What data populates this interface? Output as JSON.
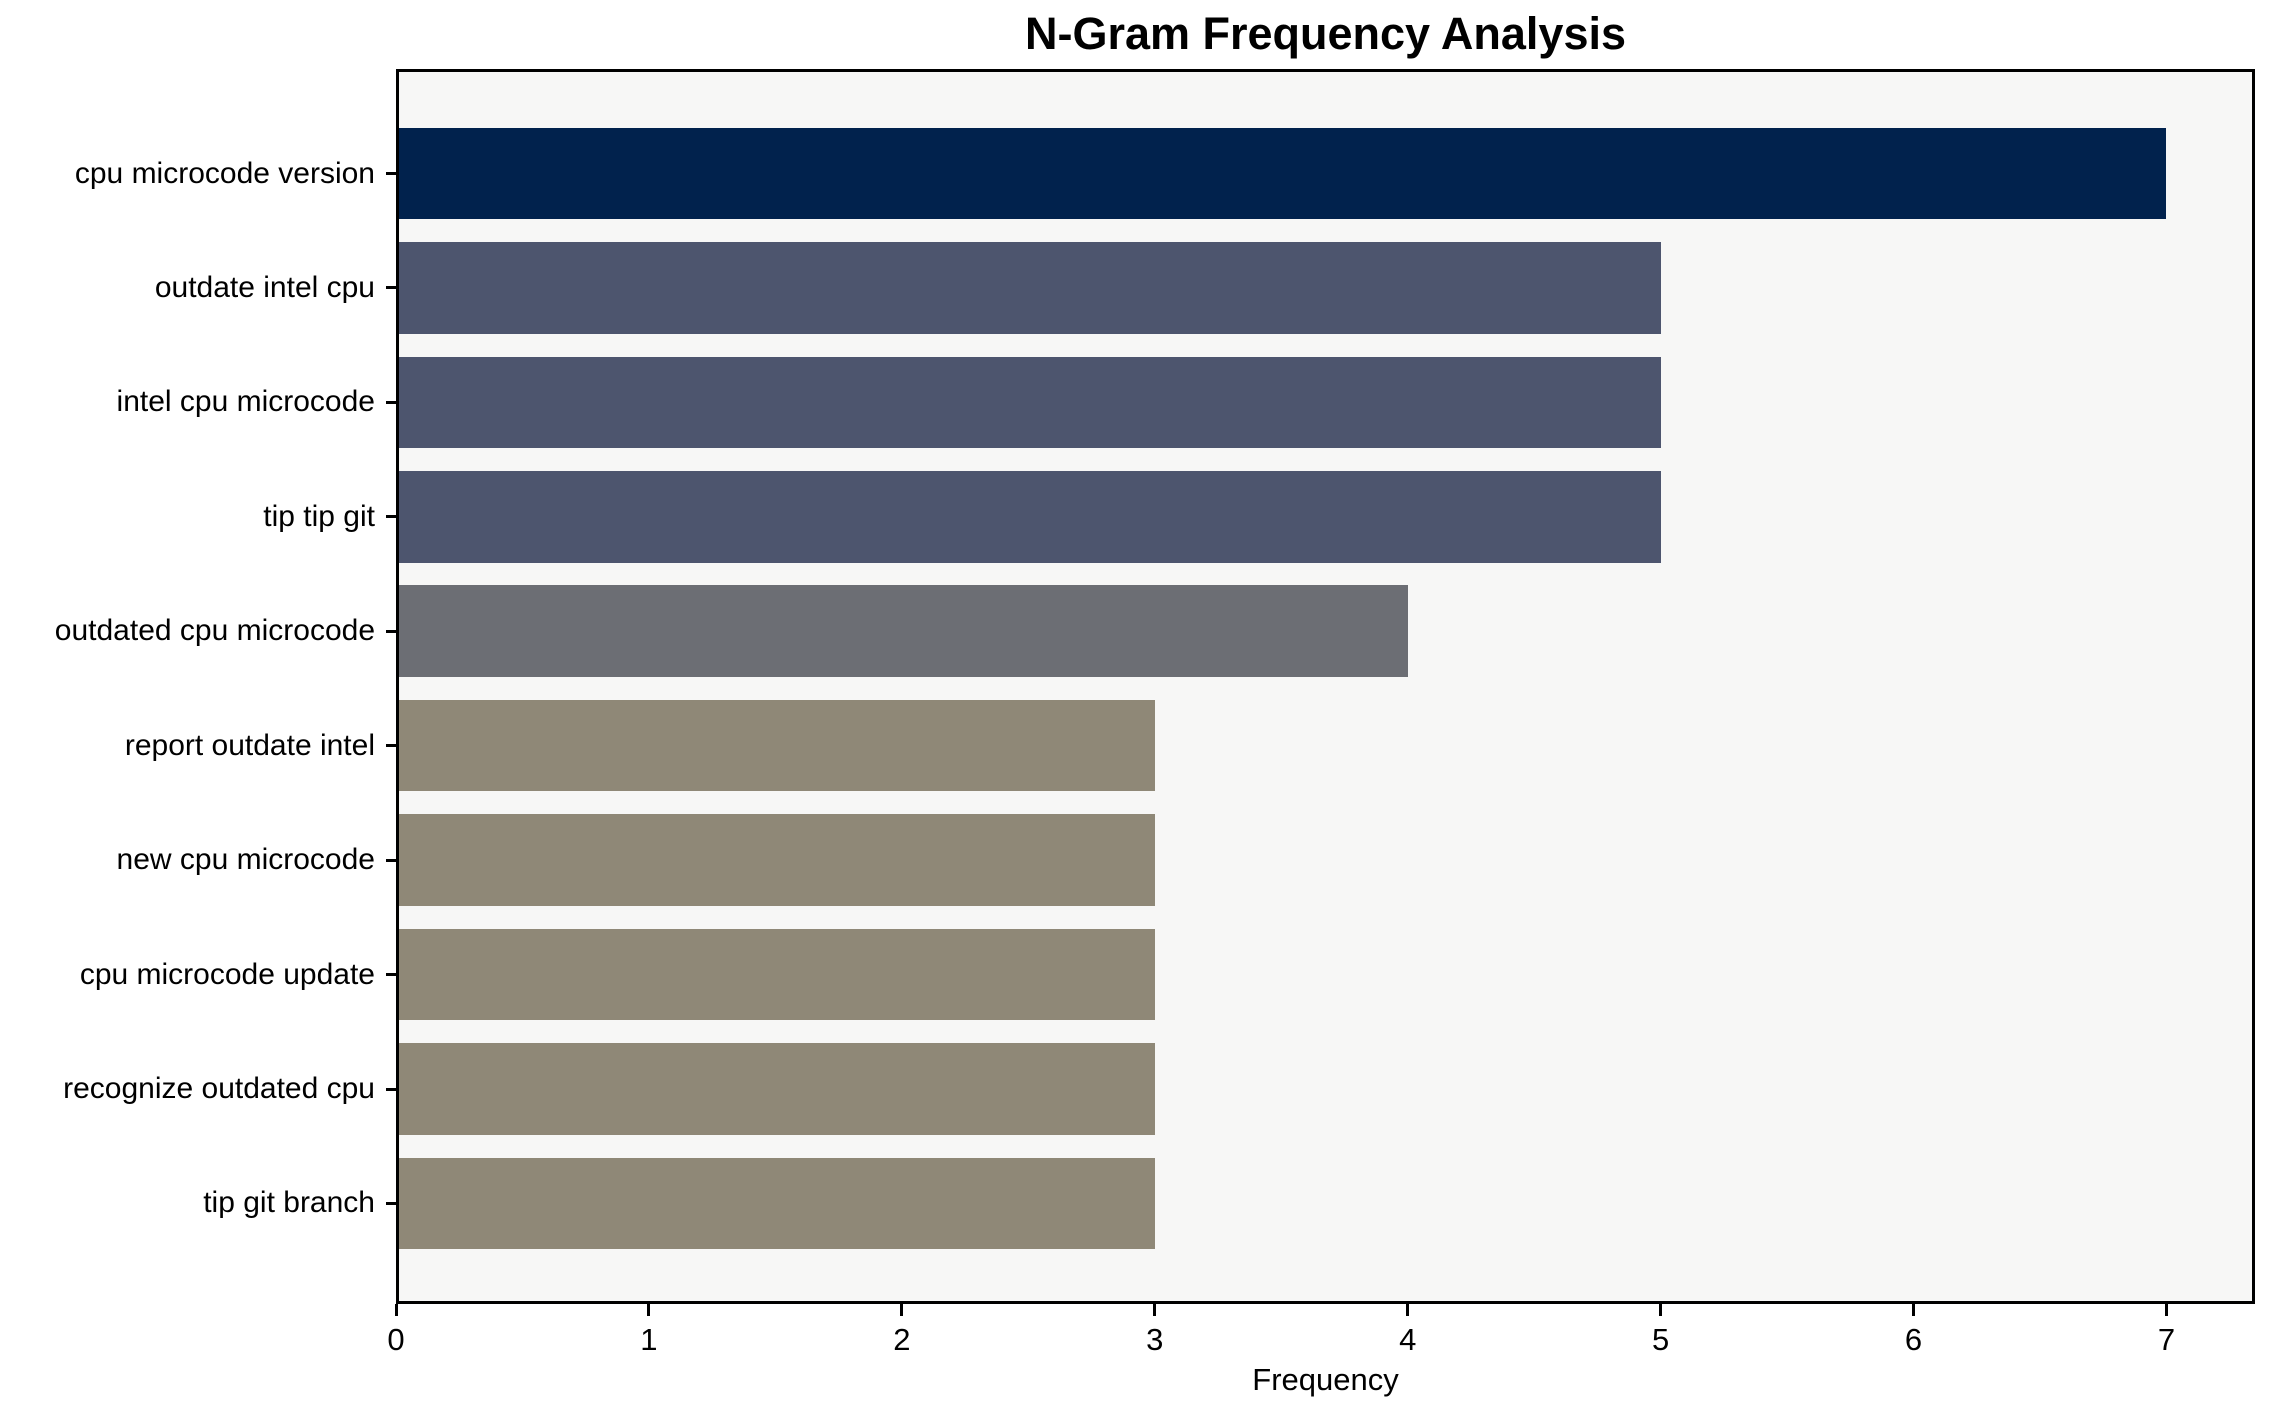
{
  "chart_data": {
    "type": "bar",
    "orientation": "horizontal",
    "title": "N-Gram Frequency Analysis",
    "xlabel": "Frequency",
    "ylabel": "",
    "categories": [
      "cpu microcode version",
      "outdate intel cpu",
      "intel cpu microcode",
      "tip tip git",
      "outdated cpu microcode",
      "report outdate intel",
      "new cpu microcode",
      "cpu microcode update",
      "recognize outdated cpu",
      "tip git branch"
    ],
    "values": [
      7,
      5,
      5,
      5,
      4,
      3,
      3,
      3,
      3,
      3
    ],
    "bar_colors": [
      "#01224d",
      "#4d556e",
      "#4d556e",
      "#4d556e",
      "#6c6e74",
      "#8f8877",
      "#8f8877",
      "#8f8877",
      "#8f8877",
      "#8f8877"
    ],
    "xticks": [
      0,
      1,
      2,
      3,
      4,
      5,
      6,
      7
    ],
    "xlim": [
      0,
      7.35
    ],
    "grid": false,
    "legend": false,
    "colors": {
      "plot_background": "#f7f7f6",
      "page_background": "#ffffff",
      "spine": "#000000",
      "text": "#000000"
    }
  }
}
